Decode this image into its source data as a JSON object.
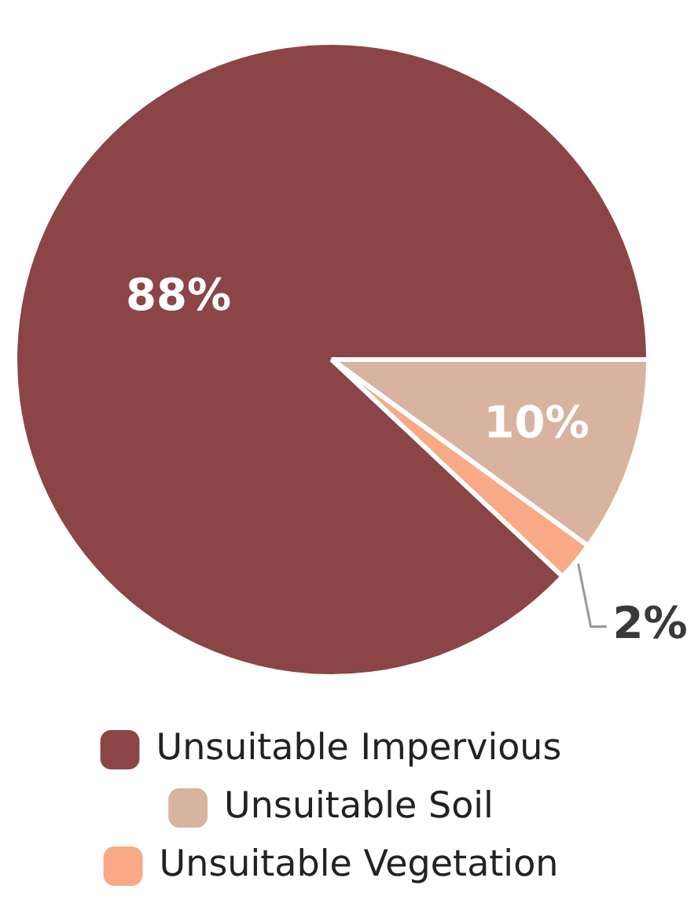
{
  "chart_data": {
    "type": "pie",
    "categories": [
      "Unsuitable Impervious",
      "Unsuitable Soil",
      "Unsuitable Vegetation"
    ],
    "values": [
      88,
      10,
      2
    ],
    "colors": [
      "#8b4547",
      "#d8b4a0",
      "#f9a986"
    ],
    "value_labels": [
      "88%",
      "10%",
      "2%"
    ],
    "legend": "bottom"
  }
}
